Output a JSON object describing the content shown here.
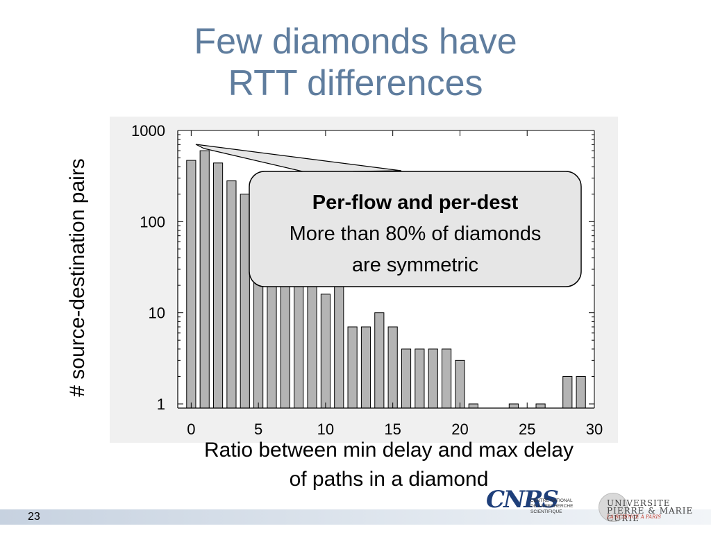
{
  "slide": {
    "title_line1": "Few diamonds have",
    "title_line2": "RTT differences",
    "page_number": "23"
  },
  "callout": {
    "heading": "Per-flow and per-dest",
    "line1": "More than 80% of diamonds",
    "line2": "are symmetric"
  },
  "logos": {
    "cnrs_mark": "CNRS",
    "cnrs_text": "CENTRE NATIONAL\nDE LA RECHERCHE\nSCIENTIFIQUE",
    "upmc_text": "UNIVERSITE\nPIERRE & MARIE CURIE",
    "upmc_sub": "LA SCIENCE A PARIS"
  },
  "chart_data": {
    "type": "bar",
    "title": "",
    "xlabel_line1": "Ratio between min delay and max delay",
    "xlabel_line2": "of paths in a diamond",
    "ylabel": "# source-destination pairs",
    "yscale": "log",
    "ylim": [
      0.9,
      1000
    ],
    "xlim": [
      -1,
      30
    ],
    "xticks": [
      0,
      5,
      10,
      15,
      20,
      25,
      30
    ],
    "xtick_labels": [
      "0",
      "5",
      "10",
      "15",
      "20",
      "25",
      "30"
    ],
    "yticks": [
      1,
      10,
      100,
      1000
    ],
    "ytick_labels": [
      "1",
      "10",
      "100",
      "1000"
    ],
    "grid": false,
    "x": [
      0,
      1,
      2,
      3,
      4,
      5,
      6,
      7,
      8,
      9,
      10,
      11,
      12,
      13,
      14,
      15,
      16,
      17,
      18,
      19,
      20,
      21,
      22,
      23,
      24,
      25,
      26,
      27,
      28,
      29
    ],
    "values": [
      470,
      600,
      440,
      280,
      200,
      120,
      80,
      60,
      40,
      30,
      16,
      20,
      7,
      7,
      10,
      7,
      4,
      4,
      4,
      4,
      3,
      1,
      0,
      0,
      1,
      0,
      1,
      0,
      2,
      2
    ],
    "bar_color": "#b4b4b4",
    "plot_background": "#f0f0f0"
  }
}
